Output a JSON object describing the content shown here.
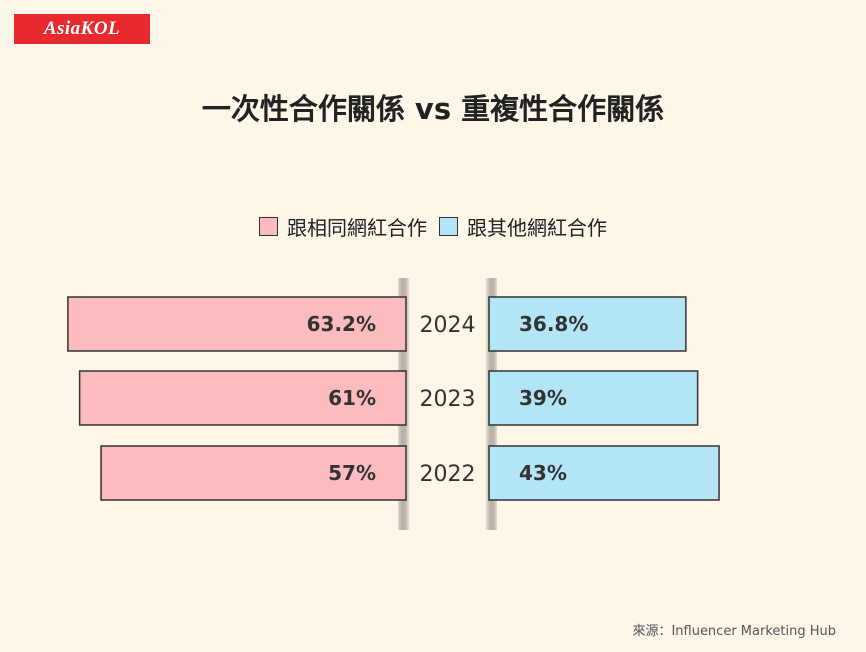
{
  "logo": {
    "text": "AsiaKOL"
  },
  "colors": {
    "background": "#fdf6e9",
    "same_kol": "#fcbcbf",
    "other_kol": "#b3e5f7",
    "border": "#333333",
    "logo_bg": "#e8292e"
  },
  "source": "來源：Influencer Marketing Hub",
  "chart_data": {
    "type": "bar",
    "orientation": "horizontal-diverging",
    "title": "一次性合作關係 vs 重複性合作關係",
    "categories": [
      "2024",
      "2023",
      "2022"
    ],
    "series": [
      {
        "name": "跟相同網紅合作",
        "color": "#fcbcbf",
        "values": [
          63.2,
          61,
          57
        ],
        "labels": [
          "63.2%",
          "61%",
          "57%"
        ]
      },
      {
        "name": "跟其他網紅合作",
        "color": "#b3e5f7",
        "values": [
          36.8,
          39,
          43
        ],
        "labels": [
          "36.8%",
          "39%",
          "43%"
        ]
      }
    ],
    "legend": "top-center",
    "grid": false
  }
}
